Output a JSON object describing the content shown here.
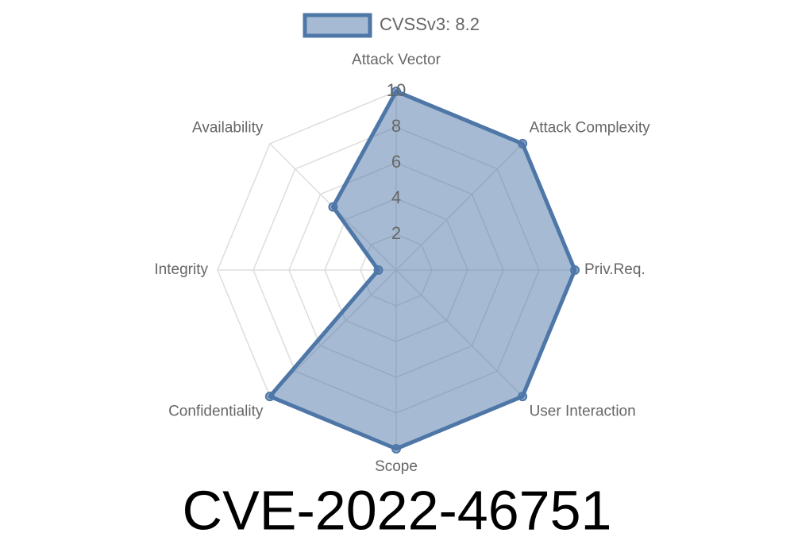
{
  "chart_data": {
    "type": "radar",
    "title": "CVE-2022-46751",
    "categories": [
      "Attack Vector",
      "Attack Complexity",
      "Priv.Req.",
      "User Interaction",
      "Scope",
      "Confidentiality",
      "Integrity",
      "Availability"
    ],
    "series": [
      {
        "name": "CVSSv3: 8.2",
        "color": "#4e77a8",
        "values": [
          10,
          10,
          10,
          10,
          10,
          10,
          1,
          5
        ]
      }
    ],
    "ylim": [
      0,
      10
    ],
    "yticks": [
      2,
      4,
      6,
      8,
      10
    ],
    "grid": true,
    "legend": "top"
  }
}
